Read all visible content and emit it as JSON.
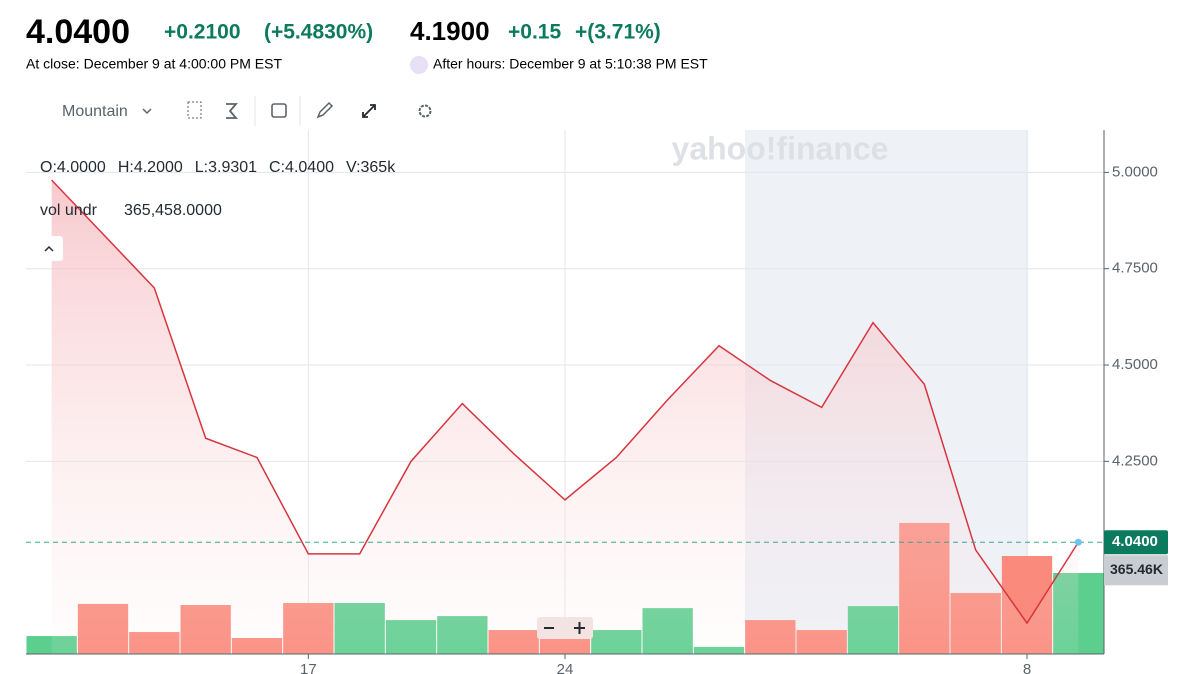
{
  "header": {
    "price": "4.0400",
    "change": "+0.2100",
    "change_pct": "(+5.4830%)",
    "close_note": "At close: December 9 at 4:00:00 PM EST",
    "after_price": "4.1900",
    "after_change": "+0.15",
    "after_pct": "+(3.71%)",
    "after_note": "After hours: December 9 at 5:10:38 PM EST"
  },
  "toolbar": {
    "chart_type": "Mountain"
  },
  "legend": {
    "ohlc": [
      "O:4.0000",
      "H:4.2000",
      "L:3.9301",
      "C:4.0400",
      "V:365k"
    ],
    "study_name": "vol undr",
    "study_value": "365,458.0000"
  },
  "watermark": "yahoo!finance",
  "chart_data": {
    "type": "mountain",
    "categories": [
      null,
      null,
      null,
      null,
      null,
      "17",
      null,
      null,
      null,
      null,
      "24",
      null,
      null,
      null,
      null,
      null,
      null,
      null,
      null,
      "8",
      null
    ],
    "series": [
      {
        "name": "price",
        "color": "#d7353e",
        "values": [
          4.98,
          4.84,
          4.7,
          4.31,
          4.26,
          4.01,
          4.01,
          4.25,
          4.4,
          4.27,
          4.15,
          4.26,
          4.41,
          4.55,
          4.46,
          4.39,
          4.61,
          4.45,
          4.02,
          3.83,
          4.04
        ]
      }
    ],
    "last_price": {
      "value": 4.04,
      "label": "4.0400",
      "color": "#0b7a5e"
    },
    "volume": {
      "values": [
        81,
        226,
        99,
        221,
        72,
        230,
        230,
        153,
        171,
        108,
        108,
        108,
        207,
        32,
        153,
        108,
        216,
        591,
        275,
        442,
        365.46
      ],
      "colors": [
        "#5ccf8f",
        "#fa8a7c",
        "#fa8a7c",
        "#fa8a7c",
        "#fa8a7c",
        "#fa8a7c",
        "#5ccf8f",
        "#5ccf8f",
        "#5ccf8f",
        "#fa8a7c",
        "#fa8a7c",
        "#5ccf8f",
        "#5ccf8f",
        "#5ccf8f",
        "#fa8a7c",
        "#fa8a7c",
        "#5ccf8f",
        "#fa8a7c",
        "#fa8a7c",
        "#fa8a7c",
        "#5ccf8f"
      ],
      "last_label": {
        "value": 365.46,
        "label": "365.46K"
      }
    },
    "ylim": [
      3.75,
      5.11
    ],
    "yticks": [
      {
        "value": 4.25,
        "label": "4.2500"
      },
      {
        "value": 4.5,
        "label": "4.5000"
      },
      {
        "value": 4.75,
        "label": "4.7500"
      },
      {
        "value": 5,
        "label": "5.0000"
      }
    ],
    "grid": true
  }
}
